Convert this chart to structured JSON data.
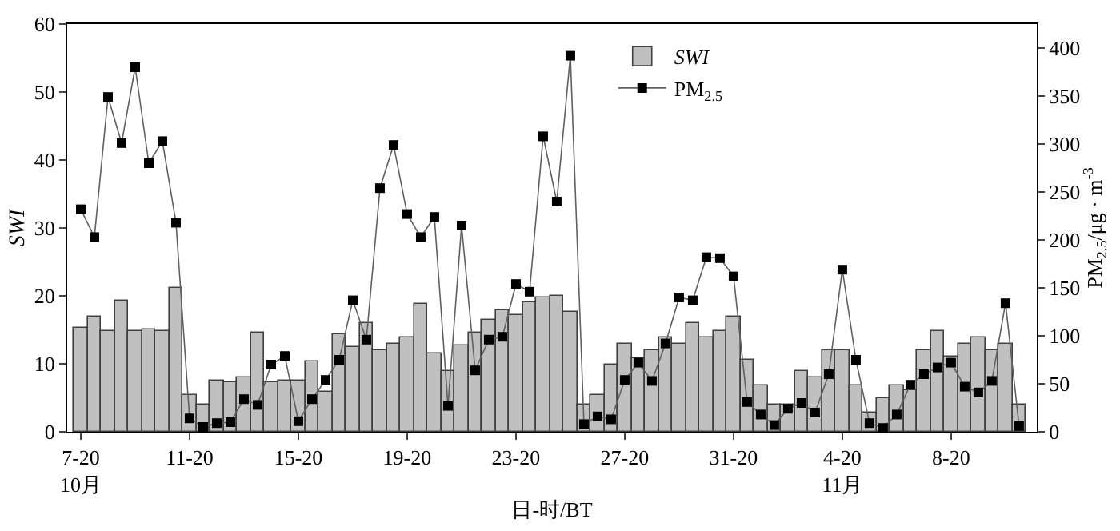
{
  "chart_data": {
    "type": "bar",
    "categories": [
      "7-20\n10月",
      null,
      null,
      null,
      null,
      null,
      null,
      null,
      "11-20",
      null,
      null,
      null,
      null,
      null,
      null,
      null,
      "15-20",
      null,
      null,
      null,
      null,
      null,
      null,
      null,
      "19-20",
      null,
      null,
      null,
      null,
      null,
      null,
      null,
      "23-20",
      null,
      null,
      null,
      null,
      null,
      null,
      null,
      "27-20",
      null,
      null,
      null,
      null,
      null,
      null,
      null,
      "31-20",
      null,
      null,
      null,
      null,
      null,
      null,
      null,
      "4-20\n11月",
      null,
      null,
      null,
      null,
      null,
      null,
      null,
      "8-20",
      null,
      null,
      null,
      null,
      null
    ],
    "series": [
      {
        "name": "SWI",
        "color": "#c0c0c0",
        "values": [
          15.4,
          17.0,
          14.9,
          19.4,
          14.9,
          15.1,
          14.8,
          21.1,
          5.5,
          4.0,
          7.6,
          7.2,
          8.0,
          14.6,
          7.3,
          7.5,
          7.6,
          10.4,
          6.0,
          14.4,
          12.4,
          16.0,
          11.9,
          13.0,
          14.0,
          18.9,
          11.6,
          9.0,
          12.6,
          14.7,
          16.4,
          17.8,
          17.2,
          19.1,
          19.8,
          19.9,
          17.7,
          4.0,
          5.3,
          10.0,
          13.0,
          10.9,
          11.9,
          13.9,
          13.0,
          15.9,
          13.9,
          14.9,
          16.9,
          10.6,
          6.9,
          4.0,
          4.0,
          9.0,
          8.0,
          11.9,
          11.9,
          6.9,
          2.9,
          5.0,
          6.9,
          6.1,
          11.9,
          14.9,
          11.0,
          13.0,
          13.9,
          11.9,
          13.0,
          4.0
        ]
      },
      {
        "name": "PM$_{2.5}$",
        "type": "line",
        "axis": "y2",
        "color": "#000000",
        "marker": "square",
        "values": [
          232,
          203,
          349,
          301,
          380,
          280,
          303,
          218,
          14,
          5,
          9,
          10,
          34,
          28,
          70,
          79,
          11,
          34,
          54,
          75,
          137,
          96,
          254,
          299,
          227,
          203,
          224,
          27,
          215,
          64,
          96,
          99,
          154,
          146,
          308,
          240,
          392,
          8,
          16,
          13,
          54,
          72,
          53,
          92,
          140,
          137,
          182,
          181,
          162,
          31,
          18,
          7,
          24,
          30,
          20,
          60,
          169,
          75,
          9,
          4,
          18,
          49,
          60,
          67,
          72,
          47,
          41,
          53,
          134,
          6
        ]
      }
    ],
    "xlabel": "日-时/BT",
    "ylabel": "SWI",
    "y2label": "PM$_{2.5}$/μg · m$^{-3}$",
    "ylim": [
      0,
      60
    ],
    "yticks": [
      0,
      10,
      20,
      30,
      40,
      50,
      60
    ],
    "y2lim": [
      0,
      425
    ],
    "y2ticks": [
      0,
      50,
      100,
      150,
      200,
      250,
      300,
      350,
      400
    ],
    "legend": "top",
    "grid": false
  }
}
